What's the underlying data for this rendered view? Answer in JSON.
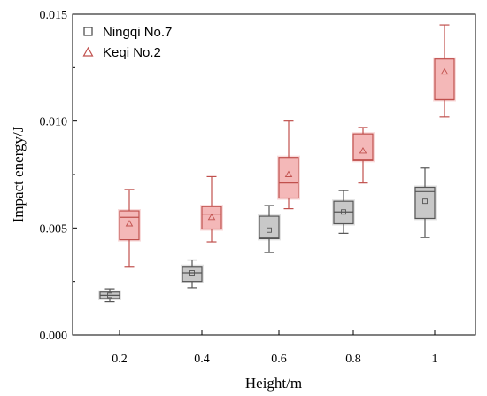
{
  "chart_data": {
    "type": "box",
    "xlabel": "Height/m",
    "ylabel": "Impact energy/J",
    "categories": [
      "0.2",
      "0.4",
      "0.6",
      "0.8",
      "1"
    ],
    "ylim": [
      0,
      0.015
    ],
    "yticks": [
      "0.000",
      "0.005",
      "0.010",
      "0.015"
    ],
    "legend_position": "top-left",
    "series": [
      {
        "name": "Ningqi No.7",
        "marker": "square",
        "fill": "#c8c8c8",
        "stroke": "#555555",
        "boxes": [
          {
            "min": 0.00155,
            "q1": 0.0017,
            "median": 0.00185,
            "q3": 0.002,
            "max": 0.00215,
            "mean": 0.00185
          },
          {
            "min": 0.0022,
            "q1": 0.0025,
            "median": 0.0029,
            "q3": 0.0032,
            "max": 0.0035,
            "mean": 0.0029
          },
          {
            "min": 0.00385,
            "q1": 0.0045,
            "median": 0.00455,
            "q3": 0.00555,
            "max": 0.00605,
            "mean": 0.0049
          },
          {
            "min": 0.00475,
            "q1": 0.0052,
            "median": 0.00575,
            "q3": 0.00625,
            "max": 0.00675,
            "mean": 0.00575
          },
          {
            "min": 0.00455,
            "q1": 0.00545,
            "median": 0.0067,
            "q3": 0.0069,
            "max": 0.0078,
            "mean": 0.00625
          }
        ]
      },
      {
        "name": "Keqi No.2",
        "marker": "triangle",
        "fill": "#f4b8b8",
        "stroke": "#c0504d",
        "boxes": [
          {
            "min": 0.0032,
            "q1": 0.00445,
            "median": 0.0055,
            "q3": 0.0058,
            "max": 0.0068,
            "mean": 0.0052
          },
          {
            "min": 0.00435,
            "q1": 0.00495,
            "median": 0.00565,
            "q3": 0.006,
            "max": 0.0074,
            "mean": 0.0055
          },
          {
            "min": 0.0059,
            "q1": 0.0064,
            "median": 0.0071,
            "q3": 0.0083,
            "max": 0.01,
            "mean": 0.0075
          },
          {
            "min": 0.0071,
            "q1": 0.00815,
            "median": 0.0082,
            "q3": 0.0094,
            "max": 0.0097,
            "mean": 0.0086
          },
          {
            "min": 0.0102,
            "q1": 0.011,
            "median": 0.011,
            "q3": 0.0129,
            "max": 0.0145,
            "mean": 0.0123
          }
        ]
      }
    ]
  }
}
